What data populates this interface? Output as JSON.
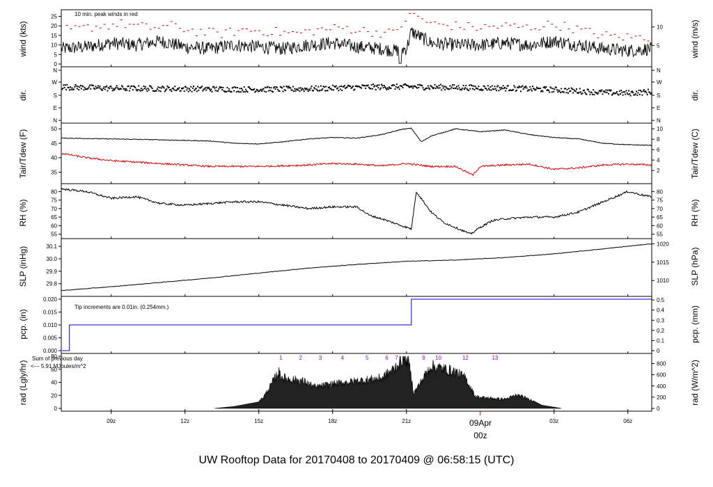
{
  "title": "UW Rooftop Data for 20170408  to  20170409 @ 06:58:15  (UTC)",
  "colors": {
    "black": "#000000",
    "red": "#d40000",
    "blue": "#0000cc",
    "purple": "#9900cc",
    "title": "#0000cc"
  },
  "time_axis": {
    "range_hours": [
      6.97,
      30.97
    ],
    "ticks": [
      {
        "h": 9,
        "label": "09z"
      },
      {
        "h": 12,
        "label": "12z"
      },
      {
        "h": 15,
        "label": "15z"
      },
      {
        "h": 18,
        "label": "18z"
      },
      {
        "h": 21,
        "label": "21z"
      },
      {
        "h": 27,
        "label": "03z"
      },
      {
        "h": 30,
        "label": "06z"
      }
    ],
    "day_marker": {
      "h": 24,
      "date": "09Apr",
      "hour": "00z"
    }
  },
  "panels": {
    "wind": {
      "ylabel": "wind (kts)",
      "ylabel_right": "wind (m/s)",
      "ylim": [
        0,
        27
      ],
      "ticks": [
        "0",
        "5",
        "10",
        "15",
        "20",
        "25"
      ],
      "right_ticks": [
        "5",
        "10"
      ],
      "note": "10 min. peak winds in red"
    },
    "dir": {
      "ylabel": "dir.",
      "ylabel_right": "dir.",
      "ticks": [
        "N",
        "W",
        "S",
        "E",
        "N"
      ]
    },
    "temp": {
      "ylabel": "Tair/Tdew (F)",
      "ylabel_right": "Tair/Tdew (C)",
      "ylim": [
        32,
        51
      ],
      "ticks": [
        "35",
        "40",
        "45",
        "50"
      ],
      "right_ticks": [
        "2",
        "4",
        "6",
        "8",
        "10"
      ]
    },
    "rh": {
      "ylabel": "RH (%)",
      "ylabel_right": "RH (%)",
      "ylim": [
        54,
        83
      ],
      "ticks": [
        "55",
        "60",
        "65",
        "70",
        "75",
        "80"
      ],
      "right_ticks": [
        "55",
        "60",
        "65",
        "70",
        "75",
        "80"
      ]
    },
    "slp": {
      "ylabel": "SLP (inHg)",
      "ylabel_right": "SLP (hPa)",
      "ylim": [
        29.72,
        30.14
      ],
      "ticks": [
        "29.8",
        "29.9",
        "30.0",
        "30.1"
      ],
      "right_ticks": [
        "1010",
        "1015",
        "1020"
      ]
    },
    "pcp": {
      "ylabel": "pcp. (in)",
      "ylabel_right": "pcp. (mm)",
      "ylim": [
        0,
        0.02
      ],
      "ticks": [
        "0.000",
        "0.005",
        "0.010",
        "0.015",
        "0.020"
      ],
      "right_ticks": [
        "0",
        "0.1",
        "0.2",
        "0.3",
        "0.4",
        "0.5"
      ],
      "note": "Tip increments are 0.01in. (0.254mm.)"
    },
    "rad": {
      "ylabel": "rad (Lgly/hr)",
      "ylabel_right": "rad (W/m^2)",
      "ylim": [
        0,
        80
      ],
      "ticks": [
        "0",
        "20",
        "40",
        "60",
        "80"
      ],
      "right_ticks": [
        "0",
        "200",
        "400",
        "600",
        "800"
      ],
      "note_line1": "Sum of previous day",
      "note_line2": "<--- 5.91 MJoules/m^2",
      "uv_labels": [
        {
          "h": 15.9,
          "v": "1"
        },
        {
          "h": 16.7,
          "v": "2"
        },
        {
          "h": 17.5,
          "v": "3"
        },
        {
          "h": 18.4,
          "v": "4"
        },
        {
          "h": 19.4,
          "v": "5"
        },
        {
          "h": 20.2,
          "v": "6"
        },
        {
          "h": 20.6,
          "v": "7"
        },
        {
          "h": 21.7,
          "v": "9"
        },
        {
          "h": 22.3,
          "v": "10"
        },
        {
          "h": 23.4,
          "v": "12"
        },
        {
          "h": 24.6,
          "v": "13"
        }
      ]
    }
  },
  "chart_data": [
    {
      "type": "line",
      "title": "",
      "ylabel": "wind (kts)",
      "series": [
        {
          "name": "wind",
          "x": [
            7,
            8,
            9,
            10,
            11,
            12,
            13,
            14,
            15,
            16,
            17,
            18,
            19,
            20,
            20.5,
            21,
            21.2,
            22,
            23,
            24,
            25,
            26,
            27,
            28,
            29,
            30,
            30.9
          ],
          "y": [
            8,
            9,
            11,
            10,
            12,
            9,
            8,
            10,
            9,
            8,
            10,
            11,
            9,
            8,
            7,
            8,
            17,
            11,
            10,
            10,
            11,
            10,
            12,
            10,
            8,
            7,
            8
          ]
        },
        {
          "name": "10 min. peak winds",
          "x": [
            7.5,
            8.5,
            9.5,
            10.5,
            11.5,
            12.5,
            13.5,
            14.5,
            15.5,
            16.5,
            17.5,
            18.5,
            19.5,
            20.5,
            21.2,
            22,
            23,
            24,
            25,
            26,
            27,
            28,
            29,
            30
          ],
          "y": [
            18,
            20,
            21,
            19,
            20,
            17,
            16,
            18,
            17,
            16,
            18,
            19,
            17,
            16,
            27,
            21,
            20,
            19,
            20,
            19,
            21,
            18,
            15,
            14
          ]
        }
      ],
      "ylim": [
        0,
        27
      ]
    },
    {
      "type": "scatter",
      "title": "",
      "ylabel": "dir. (deg)",
      "series": [
        {
          "name": "direction",
          "x": [
            7,
            9,
            11,
            13,
            15,
            17,
            19,
            21,
            23,
            25,
            27,
            29,
            30,
            30.9
          ],
          "y": [
            240,
            230,
            228,
            225,
            222,
            226,
            238,
            242,
            236,
            232,
            220,
            200,
            195,
            205
          ]
        }
      ],
      "ylim": [
        0,
        360
      ]
    },
    {
      "type": "line",
      "title": "",
      "ylabel": "Tair/Tdew (F)",
      "series": [
        {
          "name": "Tair",
          "x": [
            7,
            9,
            11,
            13,
            14,
            15,
            16,
            17,
            18,
            19,
            20,
            20.8,
            21.2,
            21.6,
            22,
            23,
            24,
            25,
            26,
            27,
            28,
            29,
            30,
            30.9
          ],
          "y": [
            46.8,
            46.5,
            46.2,
            45.8,
            45.0,
            44.8,
            45.5,
            46.5,
            47.0,
            46.8,
            48.0,
            49.8,
            50.2,
            45.5,
            47.5,
            50.0,
            49.0,
            49.6,
            48.0,
            47.0,
            46.5,
            45.0,
            44.5,
            44.3
          ]
        },
        {
          "name": "Tdew",
          "x": [
            7,
            8,
            9,
            10,
            11,
            12,
            13,
            14,
            15,
            16,
            17,
            18,
            19,
            20,
            21,
            21.5,
            22,
            23,
            23.7,
            24,
            25,
            26,
            27,
            28,
            29,
            30,
            30.9
          ],
          "y": [
            41.5,
            40.0,
            39.0,
            38.5,
            38.0,
            37.5,
            37.0,
            37.0,
            37.0,
            37.2,
            37.5,
            38.0,
            37.8,
            37.2,
            38.0,
            37.5,
            37.0,
            37.0,
            34.0,
            37.0,
            37.5,
            37.8,
            36.0,
            36.5,
            37.5,
            37.8,
            37.5
          ]
        }
      ],
      "ylim": [
        32,
        51
      ]
    },
    {
      "type": "line",
      "title": "",
      "ylabel": "RH (%)",
      "series": [
        {
          "name": "RH",
          "x": [
            7,
            8,
            9,
            10,
            11,
            12,
            13,
            14,
            15,
            16,
            17,
            18,
            19,
            19.5,
            20,
            20.8,
            21.2,
            21.4,
            22,
            22.5,
            23.3,
            23.6,
            24,
            24.5,
            25,
            26,
            27,
            28,
            29,
            30,
            30.9
          ],
          "y": [
            81.5,
            80,
            76,
            77,
            73,
            72,
            73,
            74,
            74,
            72,
            70,
            71,
            71,
            66,
            64,
            60,
            58,
            80,
            68,
            62,
            57,
            55,
            59,
            63,
            64,
            65,
            65,
            68,
            74,
            80,
            77
          ]
        }
      ],
      "ylim": [
        54,
        83
      ]
    },
    {
      "type": "line",
      "title": "",
      "ylabel": "SLP (inHg)",
      "series": [
        {
          "name": "SLP",
          "x": [
            7,
            9,
            11,
            13,
            15,
            17,
            19,
            21,
            23,
            25,
            27,
            29,
            30.9
          ],
          "y": [
            29.745,
            29.775,
            29.81,
            29.845,
            29.885,
            29.925,
            29.955,
            29.98,
            29.99,
            30.01,
            30.04,
            30.08,
            30.12
          ]
        }
      ],
      "ylim": [
        29.72,
        30.14
      ]
    },
    {
      "type": "line",
      "title": "",
      "ylabel": "pcp. (in)",
      "series": [
        {
          "name": "precip",
          "x": [
            7,
            7.3,
            7.3,
            21.2,
            21.2,
            30.97
          ],
          "y": [
            0,
            0,
            0.01,
            0.01,
            0.02,
            0.02
          ]
        }
      ],
      "ylim": [
        0,
        0.02
      ]
    },
    {
      "type": "area",
      "title": "",
      "ylabel": "rad (Lgly/hr)",
      "series": [
        {
          "name": "radiation",
          "x": [
            13.2,
            14,
            15,
            15.3,
            15.8,
            16,
            16.8,
            17.3,
            18,
            19,
            20,
            20.5,
            20.9,
            21.1,
            21.3,
            22,
            23,
            23.4,
            23.8,
            24,
            25,
            25.5,
            26,
            26.5,
            27.3
          ],
          "y": [
            0,
            3,
            10,
            25,
            60,
            50,
            45,
            35,
            40,
            45,
            50,
            65,
            85,
            75,
            25,
            70,
            60,
            50,
            20,
            18,
            15,
            22,
            15,
            5,
            0
          ]
        }
      ],
      "ylim": [
        0,
        80
      ]
    }
  ]
}
